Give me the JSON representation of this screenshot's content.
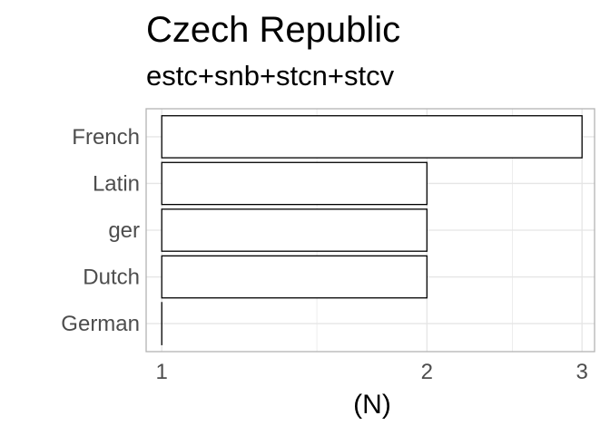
{
  "chart_data": {
    "type": "bar",
    "orientation": "horizontal",
    "title": "Czech Republic",
    "subtitle": "estc+snb+stcn+stcv",
    "xlabel": "(N)",
    "ylabel": "",
    "categories": [
      "French",
      "Latin",
      "ger",
      "Dutch",
      "German"
    ],
    "values": [
      3,
      2,
      2,
      2,
      1
    ],
    "x_scale": "log10",
    "xlim": [
      0.96,
      3.1
    ],
    "x_ticks": [
      "1",
      "2",
      "3"
    ],
    "grid": true,
    "legend": "none",
    "colors": {
      "bar_fill": "#ffffff",
      "bar_stroke": "#000000",
      "grid": "#e5e5e5",
      "panel_border": "#b3b3b3",
      "tick_text": "#4d4d4d"
    }
  }
}
